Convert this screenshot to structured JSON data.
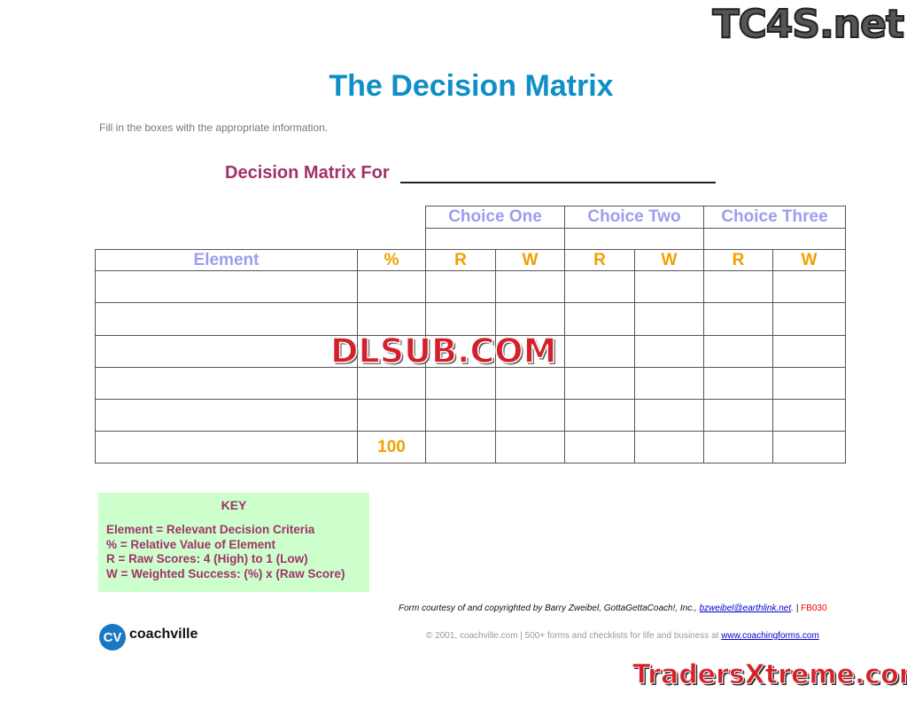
{
  "title": "The Decision Matrix",
  "instructions": "Fill in the boxes with the appropriate information.",
  "decision_for_label": "Decision Matrix For",
  "table": {
    "choices": [
      "Choice One",
      "Choice Two",
      "Choice Three"
    ],
    "element_header": "Element",
    "percent_header": "%",
    "r_label": "R",
    "w_label": "W",
    "total_percent": "100"
  },
  "key": {
    "title": "KEY",
    "lines": [
      "Element = Relevant Decision Criteria",
      "% = Relative Value of Element",
      "R = Raw Scores: 4 (High) to 1 (Low)",
      "W = Weighted Success: (%) x (Raw Score)"
    ]
  },
  "footer": {
    "courtesy": "Form courtesy of and copyrighted by Barry Zweibel, GottaGettaCoach!, Inc., ",
    "email": "bzweibel@earthlink.net",
    "sep": ". | ",
    "form_code": "FB030",
    "copyright": "© 2001, coachville.com | 500+ forms and checklists for life and business at ",
    "site": "www.coachingforms.com",
    "logo_initials": "CV",
    "logo_name": "coachville"
  },
  "watermarks": [
    "TC4S.net",
    "DLSUB.COM",
    "TradersXtreme.com"
  ]
}
